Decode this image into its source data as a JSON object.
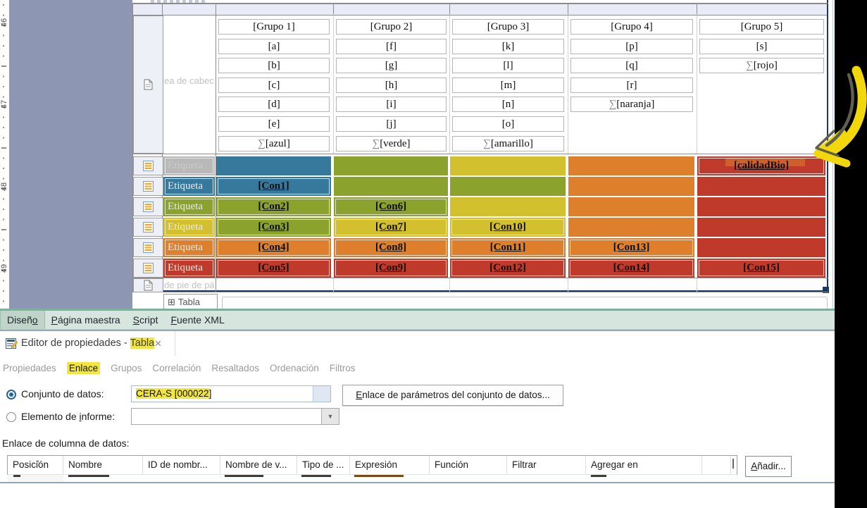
{
  "designer": {
    "ruler": {
      "numbers": [
        "46",
        "47",
        "48",
        "49"
      ]
    },
    "design_tabs": [
      {
        "label": "Diseño",
        "mnemonic": 5,
        "selected": true
      },
      {
        "label": "Página maestra",
        "mnemonic": 0,
        "selected": false
      },
      {
        "label": "Script",
        "mnemonic": 0,
        "selected": false
      },
      {
        "label": "Fuente XML",
        "mnemonic": 0,
        "selected": false
      }
    ],
    "canvas": {
      "header_row_label": "ea de cabec",
      "footer_row_label": "de pie de pá",
      "table_tab": {
        "icon": "⊞",
        "label": "Tabla"
      },
      "columns": [
        {
          "name": "grupo-1",
          "cells": [
            "[Grupo 1]",
            "[a]",
            "[b]",
            "[c]",
            "[d]",
            "[e]",
            "∑[azul]"
          ]
        },
        {
          "name": "grupo-2",
          "cells": [
            "[Grupo 2]",
            "[f]",
            "[g]",
            "[h]",
            "[i]",
            "[j]",
            "∑[verde]"
          ]
        },
        {
          "name": "grupo-3",
          "cells": [
            "[Grupo 3]",
            "[k]",
            "[l]",
            "[m]",
            "[n]",
            "[o]",
            "∑[amarillo]"
          ]
        },
        {
          "name": "grupo-4",
          "cells": [
            "[Grupo 4]",
            "[p]",
            "[q]",
            "[r]",
            "∑[naranja]"
          ]
        },
        {
          "name": "grupo-5",
          "cells": [
            "[Grupo 5]",
            "[s]",
            "∑[rojo]"
          ]
        }
      ],
      "row_label_text": "Etiqueta",
      "palette": {
        "gray": "#b9b9b9",
        "blue": "#36799c",
        "green": "#8ba32c",
        "yellow": "#d3c02f",
        "orange": "#de7f2b",
        "red": "#bf3a2b"
      },
      "detail_rows": [
        {
          "label_color": "gray",
          "cells": [
            {
              "color": "blue"
            },
            {
              "color": "green"
            },
            {
              "color": "yellow"
            },
            {
              "color": "orange"
            },
            {
              "color": "red",
              "text": "[calidadBio]",
              "marker": true
            }
          ]
        },
        {
          "label_color": "blue",
          "cells": [
            {
              "color": "blue",
              "text": "[Con1]"
            },
            {
              "color": "green"
            },
            {
              "color": "green"
            },
            {
              "color": "orange"
            },
            {
              "color": "red"
            }
          ]
        },
        {
          "label_color": "green",
          "cells": [
            {
              "color": "green",
              "text": "[Con2]"
            },
            {
              "color": "green",
              "text": "[Con6]"
            },
            {
              "color": "yellow"
            },
            {
              "color": "orange"
            },
            {
              "color": "red"
            }
          ]
        },
        {
          "label_color": "yellow",
          "cells": [
            {
              "color": "green",
              "text": "[Con3]"
            },
            {
              "color": "yellow",
              "text": "[Con7]"
            },
            {
              "color": "yellow",
              "text": "[Con10]"
            },
            {
              "color": "orange"
            },
            {
              "color": "red"
            }
          ]
        },
        {
          "label_color": "orange",
          "cells": [
            {
              "color": "orange",
              "text": "[Con4]"
            },
            {
              "color": "orange",
              "text": "[Con8]"
            },
            {
              "color": "orange",
              "text": "[Con11]"
            },
            {
              "color": "orange",
              "text": "[Con13]"
            },
            {
              "color": "red"
            }
          ]
        },
        {
          "label_color": "red",
          "cells": [
            {
              "color": "red",
              "text": "[Con5]"
            },
            {
              "color": "red",
              "text": "[Con9]"
            },
            {
              "color": "red",
              "text": "[Con12]"
            },
            {
              "color": "red",
              "text": "[Con14]"
            },
            {
              "color": "red",
              "text": "[Con15]"
            }
          ]
        }
      ]
    }
  },
  "property_editor": {
    "title_prefix": "Editor de propiedades - ",
    "title_highlight": "Tabla",
    "close_icon": "✕",
    "tabs": [
      {
        "label": "Propiedades",
        "active": false
      },
      {
        "label": "Enlace",
        "active": true
      },
      {
        "label": "Grupos",
        "active": false
      },
      {
        "label": "Correlación",
        "active": false
      },
      {
        "label": "Resaltados",
        "active": false
      },
      {
        "label": "Ordenación",
        "active": false
      },
      {
        "label": "Filtros",
        "active": false
      }
    ],
    "binding": {
      "dataset_radio_label": "Conjunto de datos:",
      "dataset_value_highlight": "CERA-S [000022",
      "dataset_value_tail": "]",
      "params_button": {
        "label": "Enlace de parámetros del conjunto de datos...",
        "mnemonic": 0
      },
      "report_item_radio": {
        "label": "Elemento de informe:",
        "mnemonic": 12
      },
      "combo_arrow": "▼",
      "column_binding_label": "Enlace de columna de datos:",
      "table_headers": [
        "Posición",
        "Nombre",
        "ID de nombr...",
        "Nombre de v...",
        "Tipo de ...",
        "Expresión",
        "Función",
        "Filtrar",
        "Agregar en"
      ],
      "sort_caret": "˄",
      "add_button": {
        "label": "Añadir...",
        "mnemonic": 0
      }
    }
  }
}
